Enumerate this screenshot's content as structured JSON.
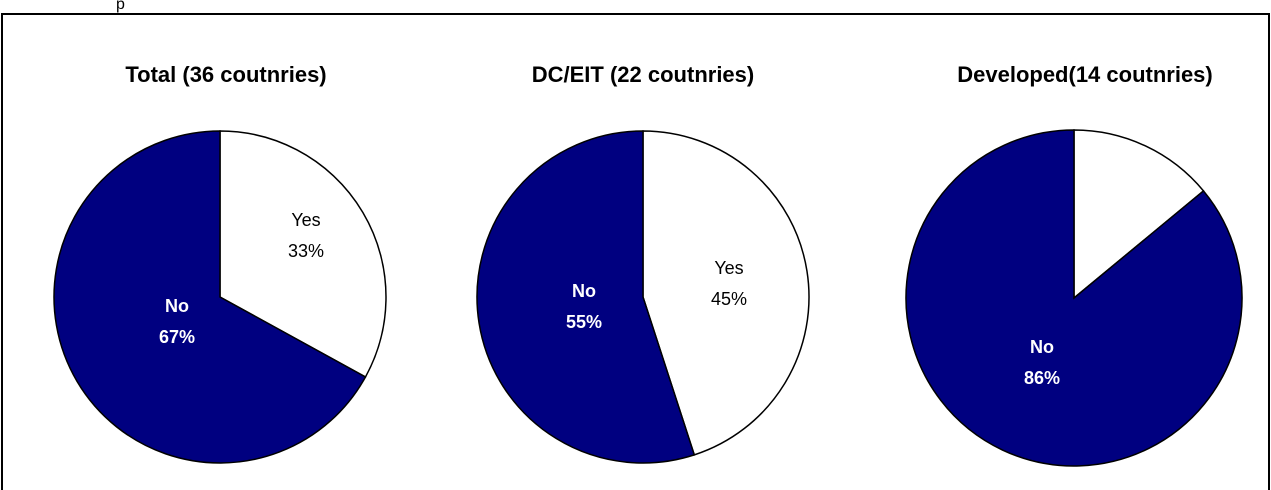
{
  "header_fragment": "p",
  "colors": {
    "no": "#000080",
    "yes": "#ffffff",
    "outline": "#000000"
  },
  "chart_data": [
    {
      "type": "pie",
      "title": "Total (36 coutnries)",
      "slices": [
        {
          "name": "Yes",
          "value": 33,
          "label": "33%",
          "color": "#ffffff"
        },
        {
          "name": "No",
          "value": 67,
          "label": "67%",
          "color": "#000080"
        }
      ]
    },
    {
      "type": "pie",
      "title": "DC/EIT (22 coutnries)",
      "slices": [
        {
          "name": "Yes",
          "value": 45,
          "label": "45%",
          "color": "#ffffff"
        },
        {
          "name": "No",
          "value": 55,
          "label": "55%",
          "color": "#000080"
        }
      ]
    },
    {
      "type": "pie",
      "title": "Developed(14 coutnries)",
      "slices": [
        {
          "name": "Yes",
          "value": 14,
          "label": "",
          "color": "#ffffff"
        },
        {
          "name": "No",
          "value": 86,
          "label": "86%",
          "color": "#000080"
        }
      ]
    }
  ]
}
